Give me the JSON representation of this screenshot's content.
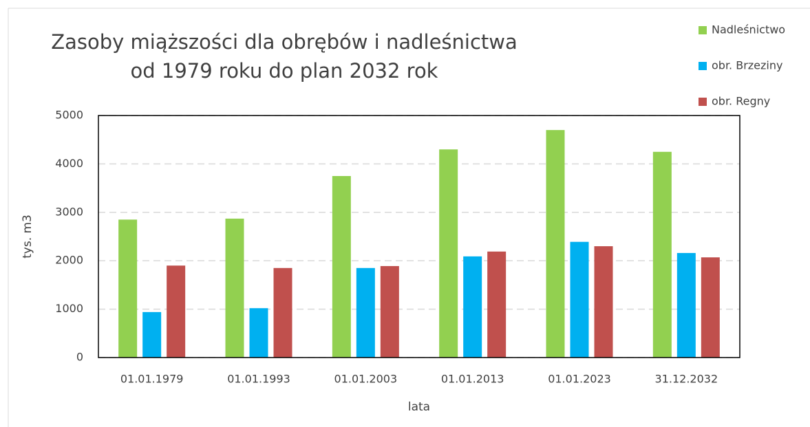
{
  "chart_data": {
    "type": "bar",
    "title": [
      "Zasoby miąższości dla obrębów i nadleśnictwa",
      "od 1979 roku do plan 2032 rok"
    ],
    "x_label": "lata",
    "y_label": "tys. m3",
    "categories": [
      "01.01.1979",
      "01.01.1993",
      "01.01.2003",
      "01.01.2013",
      "01.01.2023",
      "31.12.2032"
    ],
    "series": [
      {
        "name": "Nadleśnictwo",
        "color": "#92d050",
        "values": [
          2850,
          2870,
          3750,
          4300,
          4700,
          4250
        ]
      },
      {
        "name": "obr. Brzeziny",
        "color": "#00b0f0",
        "values": [
          940,
          1020,
          1850,
          2090,
          2390,
          2160
        ]
      },
      {
        "name": "obr. Regny",
        "color": "#c0504d",
        "values": [
          1900,
          1850,
          1890,
          2190,
          2300,
          2070
        ]
      }
    ],
    "ylim": [
      0,
      5000
    ],
    "yticks": [
      0,
      1000,
      2000,
      3000,
      4000,
      5000
    ],
    "grid": true,
    "legend": "top-right"
  }
}
